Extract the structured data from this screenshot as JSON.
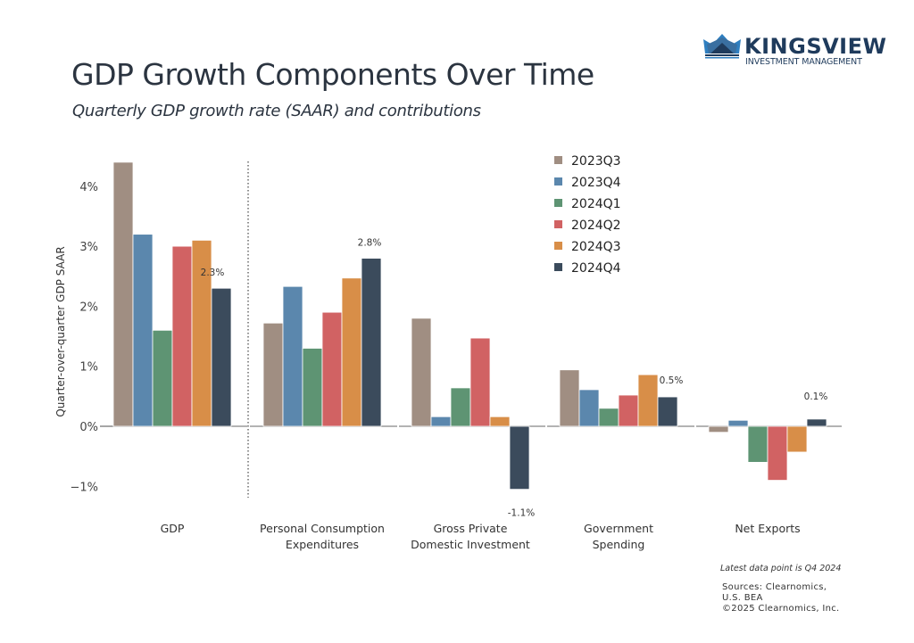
{
  "header": {
    "title": "GDP Growth Components Over Time",
    "subtitle": "Quarterly GDP growth rate (SAAR) and contributions"
  },
  "logo": {
    "name": "KINGSVIEW",
    "tagline": "INVESTMENT MANAGEMENT",
    "icon": "crown-icon"
  },
  "footer": {
    "note": "Latest data point is Q4 2024",
    "sources_lines": [
      "Sources: Clearnomics,",
      "U.S. BEA",
      "©2025 Clearnomics, Inc."
    ]
  },
  "chart_data": {
    "type": "bar",
    "title": "GDP Growth Components Over Time",
    "subtitle": "Quarterly GDP growth rate (SAAR) and contributions",
    "xlabel": "",
    "ylabel": "Quarter-over-quarter GDP SAAR",
    "ylim": [
      -1.3,
      4.5
    ],
    "yticks": [
      -1,
      0,
      1,
      2,
      3,
      4
    ],
    "ytick_labels": [
      "−1%",
      "0%",
      "1%",
      "2%",
      "3%",
      "4%"
    ],
    "grid": false,
    "legend_position": "top-right",
    "categories": [
      [
        "GDP"
      ],
      [
        "Personal Consumption",
        "Expenditures"
      ],
      [
        "Gross Private",
        "Domestic Investment"
      ],
      [
        "Government",
        "Spending"
      ],
      [
        "Net Exports"
      ]
    ],
    "separator_after_category": 0,
    "series": [
      {
        "name": "2023Q3",
        "color": "#a08e82",
        "values": [
          4.4,
          1.72,
          1.8,
          0.94,
          -0.1
        ]
      },
      {
        "name": "2023Q4",
        "color": "#5b87ad",
        "values": [
          3.2,
          2.33,
          0.16,
          0.61,
          0.1
        ]
      },
      {
        "name": "2024Q1",
        "color": "#5e9473",
        "values": [
          1.6,
          1.3,
          0.64,
          0.3,
          -0.6
        ]
      },
      {
        "name": "2024Q2",
        "color": "#d16263",
        "values": [
          3.0,
          1.9,
          1.47,
          0.52,
          -0.9
        ]
      },
      {
        "name": "2024Q3",
        "color": "#d88e48",
        "values": [
          3.1,
          2.47,
          0.16,
          0.86,
          -0.43
        ]
      },
      {
        "name": "2024Q4",
        "color": "#3b4b5c",
        "values": [
          2.3,
          2.8,
          -1.05,
          0.49,
          0.12
        ]
      }
    ],
    "annotations": [
      {
        "category": 0,
        "series": 5,
        "text": "2.3%"
      },
      {
        "category": 1,
        "series": 5,
        "text": "2.8%"
      },
      {
        "category": 2,
        "series": 5,
        "text": "-1.1%"
      },
      {
        "category": 3,
        "series": 5,
        "text": "0.5%"
      },
      {
        "category": 4,
        "series": 5,
        "text": "0.1%"
      }
    ]
  }
}
